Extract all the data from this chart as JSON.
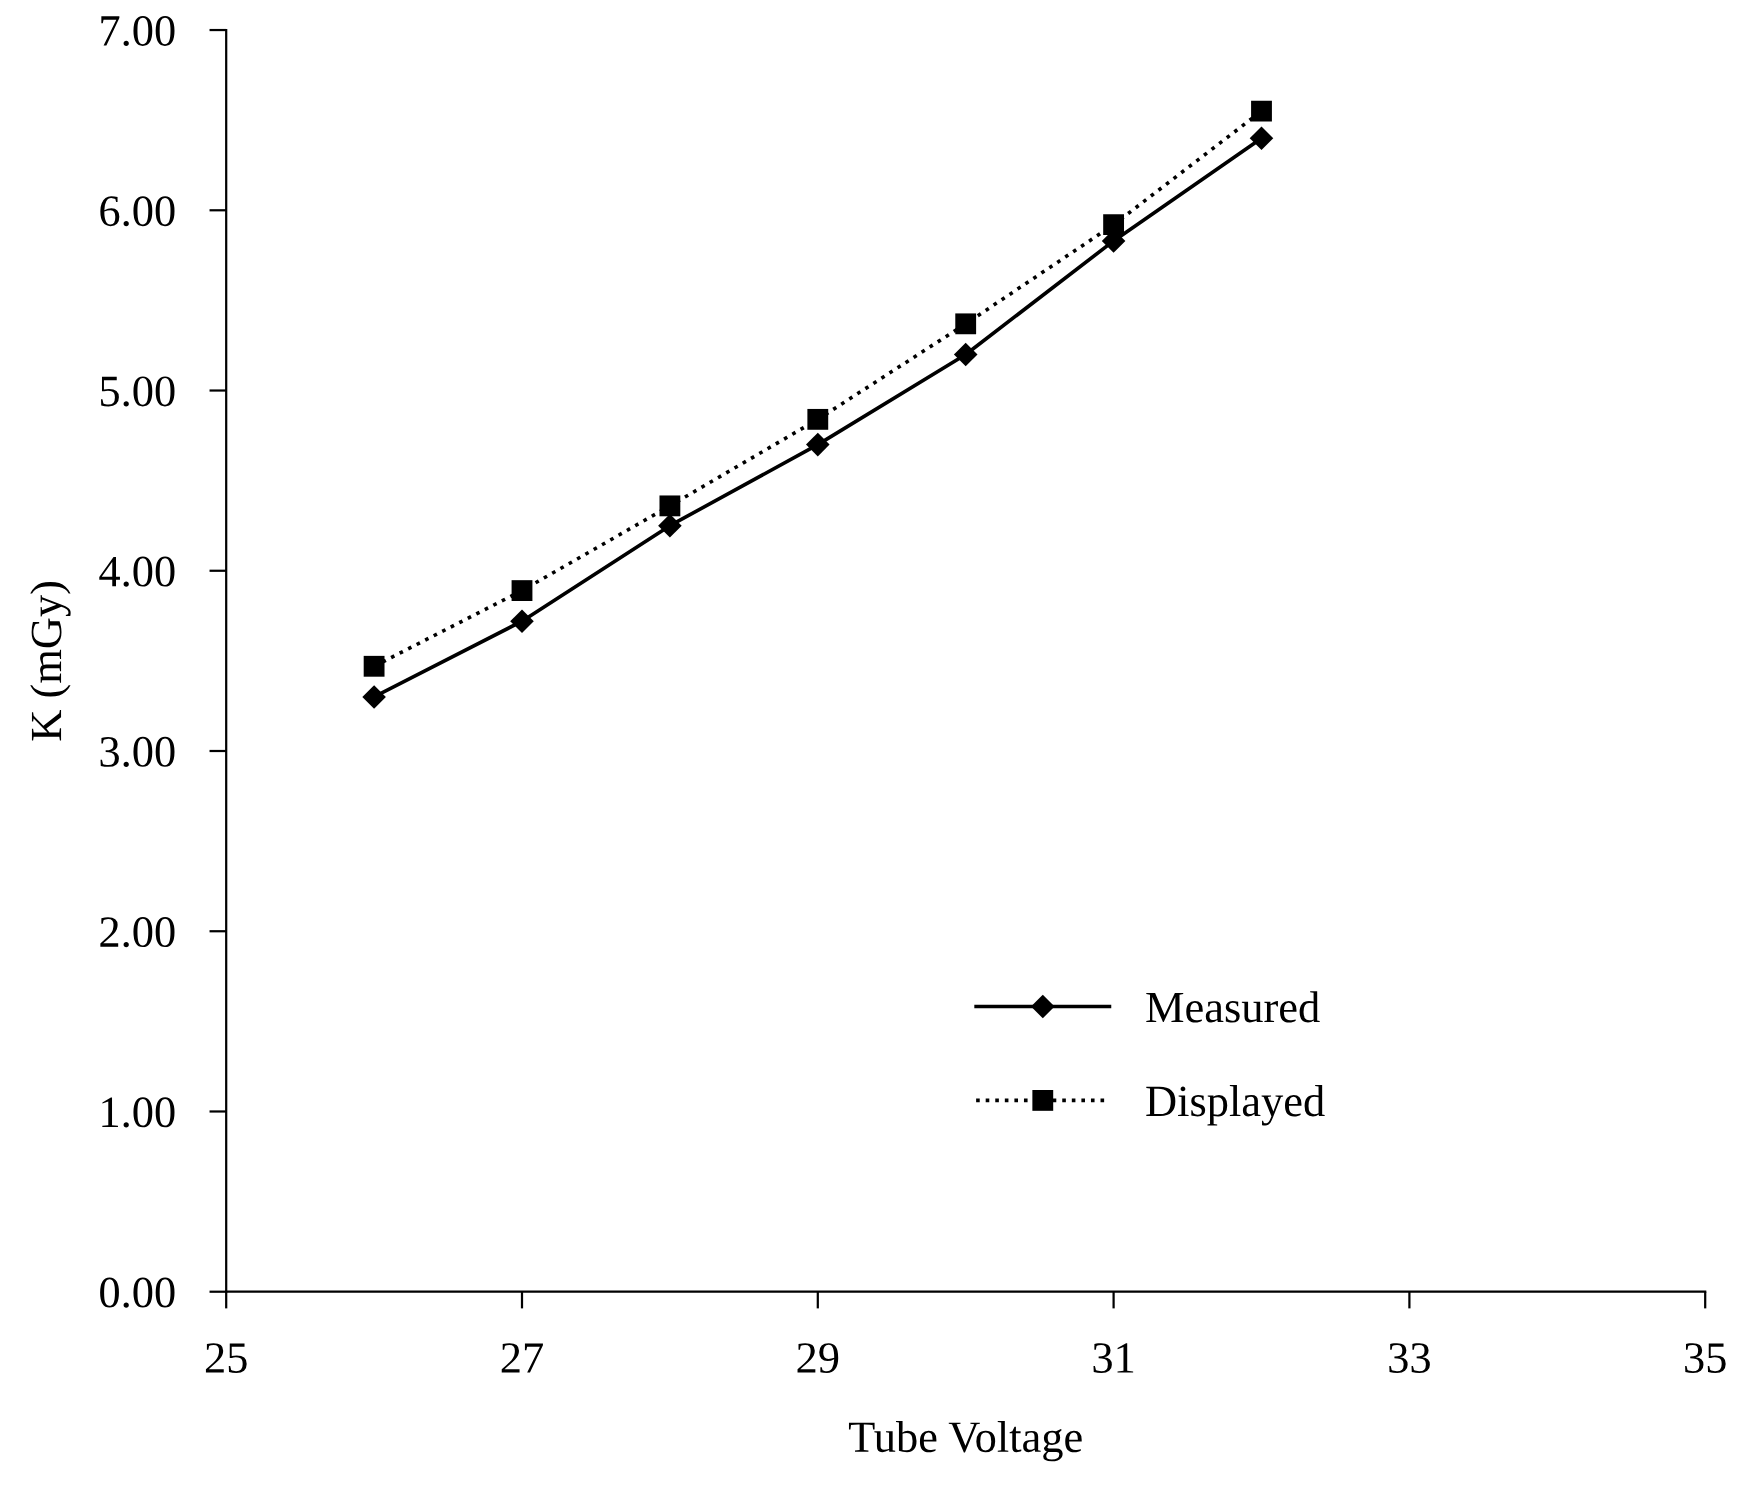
{
  "chart_data": {
    "type": "line",
    "xlabel": "Tube Voltage",
    "ylabel": "K (mGy)",
    "x": [
      26,
      27,
      28,
      29,
      30,
      31,
      32
    ],
    "series": [
      {
        "name": "Measured",
        "color": "#000000",
        "marker": "diamond",
        "line_style": "solid",
        "values": [
          3.3,
          3.72,
          4.25,
          4.7,
          5.2,
          5.83,
          6.4
        ]
      },
      {
        "name": "Displayed",
        "color": "#000000",
        "marker": "square",
        "line_style": "dotted",
        "values": [
          3.47,
          3.89,
          4.36,
          4.84,
          5.37,
          5.92,
          6.55
        ]
      }
    ],
    "xlim": [
      25,
      35
    ],
    "xticks": [
      25,
      27,
      29,
      31,
      33,
      35
    ],
    "ylim": [
      0,
      7
    ],
    "yticks": [
      {
        "value": 0,
        "label": "0.00"
      },
      {
        "value": 1,
        "label": "1.00"
      },
      {
        "value": 2,
        "label": "2.00"
      },
      {
        "value": 3,
        "label": "3.00"
      },
      {
        "value": 4,
        "label": "4.00"
      },
      {
        "value": 5,
        "label": "5.00"
      },
      {
        "value": 6,
        "label": "6.00"
      },
      {
        "value": 7,
        "label": "7.00"
      }
    ],
    "grid": false,
    "legend": "bottom right"
  }
}
